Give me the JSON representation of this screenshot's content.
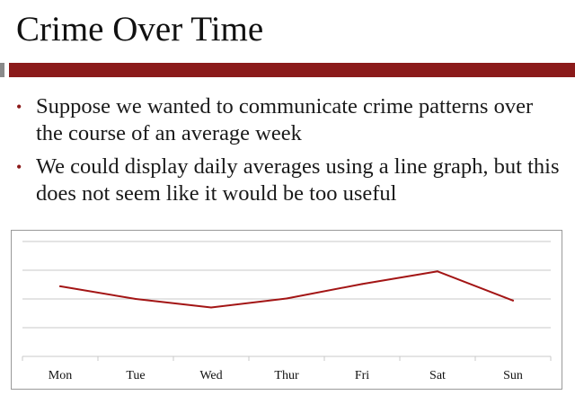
{
  "slide": {
    "title": "Crime Over Time",
    "bullets": [
      "Suppose we wanted to communicate crime patterns over the course of an average week",
      "We could display daily averages using a line graph, but this does not seem like it would be too useful"
    ],
    "bullet_glyph": "•"
  },
  "colors": {
    "accent": "#8b1a1a",
    "line": "#a31515",
    "grid": "#c8c8c8"
  },
  "chart_data": {
    "type": "line",
    "title": "",
    "xlabel": "",
    "ylabel": "",
    "categories": [
      "Mon",
      "Tue",
      "Wed",
      "Thur",
      "Fri",
      "Sat",
      "Sun"
    ],
    "series": [
      {
        "values": [
          3.05,
          2.5,
          2.13,
          2.52,
          3.15,
          3.7,
          2.43
        ]
      }
    ],
    "ylim": [
      0,
      5
    ],
    "y_ticks_visible": false,
    "grid": "horizontal"
  }
}
